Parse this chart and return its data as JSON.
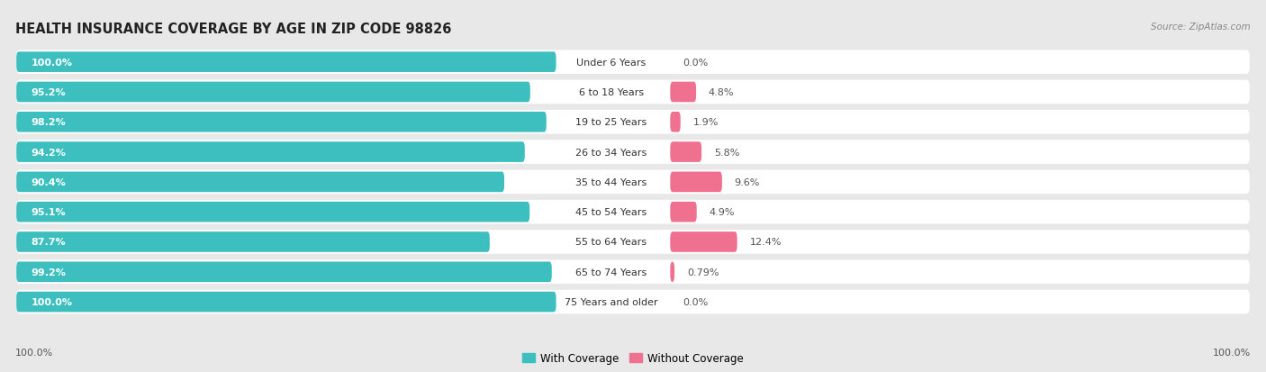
{
  "title": "HEALTH INSURANCE COVERAGE BY AGE IN ZIP CODE 98826",
  "source": "Source: ZipAtlas.com",
  "categories": [
    "Under 6 Years",
    "6 to 18 Years",
    "19 to 25 Years",
    "26 to 34 Years",
    "35 to 44 Years",
    "45 to 54 Years",
    "55 to 64 Years",
    "65 to 74 Years",
    "75 Years and older"
  ],
  "with_coverage": [
    100.0,
    95.2,
    98.2,
    94.2,
    90.4,
    95.1,
    87.7,
    99.2,
    100.0
  ],
  "without_coverage": [
    0.0,
    4.8,
    1.9,
    5.8,
    9.6,
    4.9,
    12.4,
    0.79,
    0.0
  ],
  "with_coverage_labels": [
    "100.0%",
    "95.2%",
    "98.2%",
    "94.2%",
    "90.4%",
    "95.1%",
    "87.7%",
    "99.2%",
    "100.0%"
  ],
  "without_coverage_labels": [
    "0.0%",
    "4.8%",
    "1.9%",
    "5.8%",
    "9.6%",
    "4.9%",
    "12.4%",
    "0.79%",
    "0.0%"
  ],
  "color_with": "#3DBFBF",
  "color_without": "#F07090",
  "color_without_light": "#F8B8C8",
  "background_color": "#e8e8e8",
  "bar_background": "#ffffff",
  "title_fontsize": 10.5,
  "label_fontsize": 8.0,
  "legend_label_with": "With Coverage",
  "legend_label_without": "Without Coverage",
  "bottom_left_label": "100.0%",
  "bottom_right_label": "100.0%"
}
